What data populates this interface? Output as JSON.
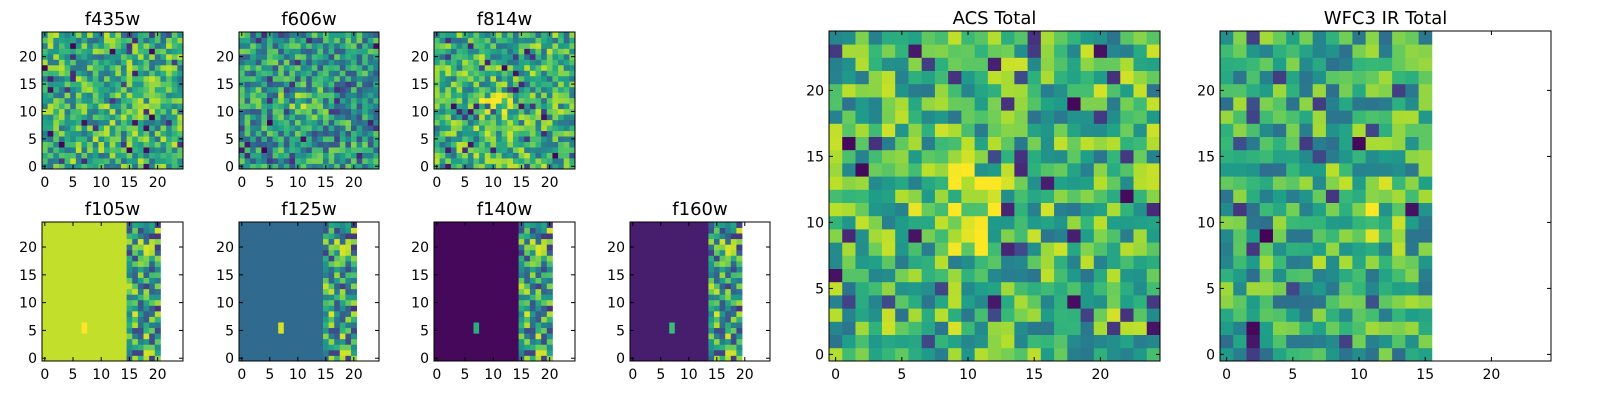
{
  "figure": {
    "background": "#ffffff",
    "colormap": "viridis"
  },
  "chart_data": [
    {
      "type": "heatmap",
      "title": "f435w",
      "pattern": "noise",
      "seed": 11,
      "lo": 0.35,
      "hi": 0.92,
      "xlim": [
        -0.5,
        24.5
      ],
      "ylim": [
        -0.5,
        24.5
      ],
      "xticks": [
        "0",
        "5",
        "10",
        "15",
        "20"
      ],
      "yticks": [
        "0",
        "5",
        "10",
        "15",
        "20"
      ]
    },
    {
      "type": "heatmap",
      "title": "f606w",
      "pattern": "noise_blob",
      "seed": 23,
      "lo": 0.25,
      "hi": 0.82,
      "xlim": [
        -0.5,
        24.5
      ],
      "ylim": [
        -0.5,
        24.5
      ],
      "xticks": [
        "0",
        "5",
        "10",
        "15",
        "20"
      ],
      "yticks": [
        "0",
        "5",
        "10",
        "15",
        "20"
      ]
    },
    {
      "type": "heatmap",
      "title": "f814w",
      "pattern": "noise_blob",
      "seed": 37,
      "lo": 0.35,
      "hi": 0.92,
      "xlim": [
        -0.5,
        24.5
      ],
      "ylim": [
        -0.5,
        24.5
      ],
      "xticks": [
        "0",
        "5",
        "10",
        "15",
        "20"
      ],
      "yticks": [
        "0",
        "5",
        "10",
        "15",
        "20"
      ]
    },
    {
      "type": "heatmap",
      "title": "f105w",
      "pattern": "ir",
      "fill_value": 0.91,
      "data_columns": 21,
      "xlim": [
        -0.5,
        24.5
      ],
      "ylim": [
        -0.5,
        24.5
      ],
      "xticks": [
        "0",
        "5",
        "10",
        "15",
        "20"
      ],
      "yticks": [
        "0",
        "5",
        "10",
        "15",
        "20"
      ]
    },
    {
      "type": "heatmap",
      "title": "f125w",
      "pattern": "ir",
      "fill_value": 0.34,
      "data_columns": 21,
      "xlim": [
        -0.5,
        24.5
      ],
      "ylim": [
        -0.5,
        24.5
      ],
      "xticks": [
        "0",
        "5",
        "10",
        "15",
        "20"
      ],
      "yticks": [
        "0",
        "5",
        "10",
        "15",
        "20"
      ]
    },
    {
      "type": "heatmap",
      "title": "f140w",
      "pattern": "ir",
      "fill_value": 0.02,
      "data_columns": 21,
      "xlim": [
        -0.5,
        24.5
      ],
      "ylim": [
        -0.5,
        24.5
      ],
      "xticks": [
        "0",
        "5",
        "10",
        "15",
        "20"
      ],
      "yticks": [
        "0",
        "5",
        "10",
        "15",
        "20"
      ]
    },
    {
      "type": "heatmap",
      "title": "f160w",
      "pattern": "ir",
      "fill_value": 0.08,
      "data_columns": 20,
      "xlim": [
        -0.5,
        24.5
      ],
      "ylim": [
        -0.5,
        24.5
      ],
      "xticks": [
        "0",
        "5",
        "10",
        "15",
        "20"
      ],
      "yticks": [
        "0",
        "5",
        "10",
        "15",
        "20"
      ]
    },
    {
      "type": "heatmap",
      "title": "ACS Total",
      "pattern": "noise_blob",
      "seed": 51,
      "lo": 0.38,
      "hi": 0.94,
      "xlim": [
        -0.5,
        24.5
      ],
      "ylim": [
        -0.5,
        24.5
      ],
      "xticks": [
        "0",
        "5",
        "10",
        "15",
        "20"
      ],
      "yticks": [
        "0",
        "5",
        "10",
        "15",
        "20"
      ]
    },
    {
      "type": "heatmap",
      "title": "WFC3 IR Total",
      "pattern": "noise_blob",
      "seed": 67,
      "lo": 0.35,
      "hi": 0.88,
      "data_columns": 16,
      "xlim": [
        -0.5,
        24.5
      ],
      "ylim": [
        -0.5,
        24.5
      ],
      "xticks": [
        "0",
        "5",
        "10",
        "15",
        "20"
      ],
      "yticks": [
        "0",
        "5",
        "10",
        "15",
        "20"
      ]
    }
  ]
}
